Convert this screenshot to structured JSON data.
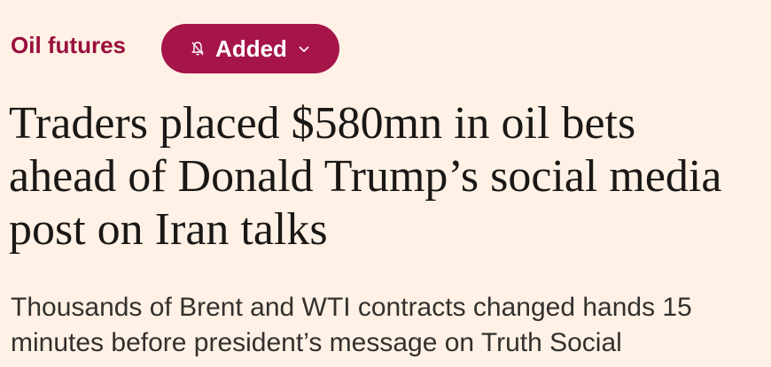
{
  "topic": "Oil futures",
  "follow_button": {
    "label": "Added"
  },
  "headline": [
    "Traders placed $580mn in oil bets",
    "ahead of Donald Trump’s social media",
    "post on Iran talks"
  ],
  "standfirst": [
    "Thousands of Brent and WTI contracts changed hands 15",
    "minutes before president’s message on Truth Social"
  ]
}
